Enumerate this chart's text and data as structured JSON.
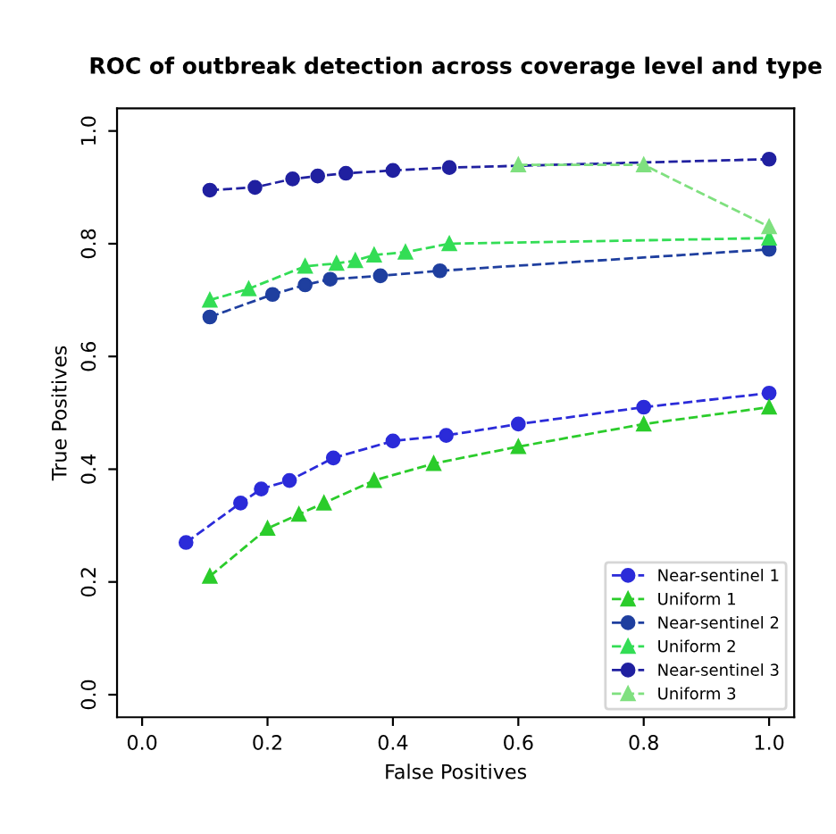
{
  "chart_data": {
    "type": "line",
    "title": "ROC of outbreak detection across coverage level and type",
    "xlabel": "False Positives",
    "ylabel": "True Positives",
    "xlim": [
      -0.04,
      1.04
    ],
    "ylim": [
      -0.04,
      1.04
    ],
    "xticks": [
      {
        "value": 0,
        "label": "0.0"
      },
      0.2,
      0.4,
      0.6,
      0.8,
      {
        "value": 1,
        "label": "1.0"
      }
    ],
    "yticks": [
      {
        "value": 0,
        "label": "0.0"
      },
      0.2,
      0.4,
      0.6,
      0.8,
      {
        "value": 1,
        "label": "1.0"
      }
    ],
    "grid": false,
    "legend": "bottom right",
    "line_style": "dashed",
    "series": [
      {
        "name": "Near-sentinel 1",
        "color": "#2b2bd9",
        "marker": "circle",
        "x": [
          0.07,
          0.157,
          0.19,
          0.235,
          0.305,
          0.4,
          0.485,
          0.6,
          0.8,
          1.0
        ],
        "values": [
          0.27,
          0.34,
          0.365,
          0.38,
          0.42,
          0.45,
          0.46,
          0.48,
          0.51,
          0.535
        ]
      },
      {
        "name": "Uniform 1",
        "color": "#2bcc2b",
        "marker": "triangle",
        "x": [
          0.108,
          0.2,
          0.25,
          0.29,
          0.37,
          0.465,
          0.6,
          0.8,
          1.0
        ],
        "values": [
          0.21,
          0.295,
          0.32,
          0.34,
          0.38,
          0.41,
          0.44,
          0.48,
          0.51
        ]
      },
      {
        "name": "Near-sentinel 2",
        "color": "#1f3f9f",
        "marker": "circle",
        "x": [
          0.108,
          0.208,
          0.26,
          0.3,
          0.38,
          0.475,
          1.0
        ],
        "values": [
          0.67,
          0.71,
          0.727,
          0.737,
          0.743,
          0.752,
          0.79
        ]
      },
      {
        "name": "Uniform 2",
        "color": "#33dd55",
        "marker": "triangle",
        "x": [
          0.108,
          0.17,
          0.26,
          0.31,
          0.34,
          0.37,
          0.42,
          0.49,
          1.0
        ],
        "values": [
          0.7,
          0.72,
          0.76,
          0.765,
          0.77,
          0.78,
          0.785,
          0.8,
          0.81
        ]
      },
      {
        "name": "Near-sentinel 3",
        "color": "#2020a0",
        "marker": "circle",
        "x": [
          0.108,
          0.18,
          0.24,
          0.28,
          0.325,
          0.4,
          0.49,
          1.0
        ],
        "values": [
          0.895,
          0.9,
          0.915,
          0.92,
          0.925,
          0.93,
          0.935,
          0.95
        ]
      },
      {
        "name": "Uniform 3",
        "color": "#7fe07f",
        "marker": "triangle",
        "x": [
          0.6,
          0.8,
          1.0
        ],
        "values": [
          0.94,
          0.94,
          0.83
        ]
      }
    ]
  }
}
